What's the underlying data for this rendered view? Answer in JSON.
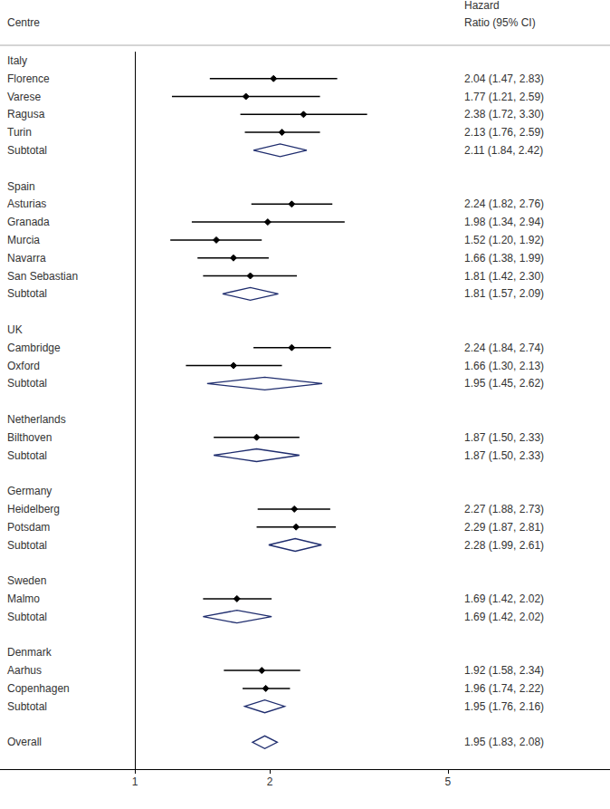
{
  "chart_data": {
    "type": "forest",
    "column_titles": {
      "left": [
        "Centre"
      ],
      "right": [
        "Hazard",
        "Ratio (95% CI)"
      ]
    },
    "categories": [
      "Italy",
      "Florence",
      "Varese",
      "Ragusa",
      "Turin",
      "Subtotal",
      null,
      "Spain",
      "Asturias",
      "Granada",
      "Murcia",
      "Navarra",
      "San Sebastian",
      "Subtotal",
      null,
      "UK",
      "Cambridge",
      "Oxford",
      "Subtotal",
      null,
      "Netherlands",
      "Bilthoven",
      "Subtotal",
      null,
      "Germany",
      "Heidelberg",
      "Potsdam",
      "Subtotal",
      null,
      "Sweden",
      "Malmo",
      "Subtotal",
      null,
      "Denmark",
      "Aarhus",
      "Copenhagen",
      "Subtotal",
      null,
      "Overall",
      null
    ],
    "values": [
      null,
      2.04,
      1.77,
      2.38,
      2.13,
      2.11,
      null,
      null,
      2.24,
      1.98,
      1.52,
      1.66,
      1.81,
      1.81,
      null,
      null,
      2.24,
      1.66,
      1.95,
      null,
      null,
      1.87,
      1.87,
      null,
      null,
      2.27,
      2.29,
      2.28,
      null,
      null,
      1.69,
      1.69,
      null,
      null,
      1.92,
      1.96,
      1.95,
      null,
      1.95,
      null
    ],
    "lower": [
      null,
      1.47,
      1.21,
      1.72,
      1.76,
      1.84,
      null,
      null,
      1.82,
      1.34,
      1.2,
      1.38,
      1.42,
      1.57,
      null,
      null,
      1.84,
      1.3,
      1.45,
      null,
      null,
      1.5,
      1.5,
      null,
      null,
      1.88,
      1.87,
      1.99,
      null,
      null,
      1.42,
      1.42,
      null,
      null,
      1.58,
      1.74,
      1.76,
      null,
      1.83,
      null
    ],
    "upper": [
      null,
      2.83,
      2.59,
      3.3,
      2.59,
      2.42,
      null,
      null,
      2.76,
      2.94,
      1.92,
      1.99,
      2.3,
      2.09,
      null,
      null,
      2.74,
      2.13,
      2.62,
      null,
      null,
      2.33,
      2.33,
      null,
      null,
      2.73,
      2.81,
      2.61,
      null,
      null,
      2.02,
      2.02,
      null,
      null,
      2.34,
      2.22,
      2.16,
      null,
      2.08,
      null
    ],
    "value_labels": [
      null,
      "2.04 (1.47, 2.83)",
      "1.77 (1.21, 2.59)",
      "2.38 (1.72, 3.30)",
      "2.13 (1.76, 2.59)",
      "2.11 (1.84, 2.42)",
      null,
      null,
      "2.24 (1.82, 2.76)",
      "1.98 (1.34, 2.94)",
      "1.52 (1.20, 1.92)",
      "1.66 (1.38, 1.99)",
      "1.81 (1.42, 2.30)",
      "1.81 (1.57, 2.09)",
      null,
      null,
      "2.24 (1.84, 2.74)",
      "1.66 (1.30, 2.13)",
      "1.95 (1.45, 2.62)",
      null,
      null,
      "1.87 (1.50, 2.33)",
      "1.87 (1.50, 2.33)",
      null,
      null,
      "2.27 (1.88, 2.73)",
      "2.29 (1.87, 2.81)",
      "2.28 (1.99, 2.61)",
      null,
      null,
      "1.69 (1.42, 2.02)",
      "1.69 (1.42, 2.02)",
      null,
      null,
      "1.92 (1.58, 2.34)",
      "1.96 (1.74, 2.22)",
      "1.95 (1.76, 2.16)",
      null,
      "1.95 (1.83, 2.08)",
      null
    ],
    "markers": [
      null,
      "point",
      "point",
      "point",
      "point",
      "diamond",
      null,
      null,
      "point",
      "point",
      "point",
      "point",
      "point",
      "diamond",
      null,
      null,
      "point",
      "point",
      "diamond",
      null,
      null,
      "point",
      "diamond",
      null,
      null,
      "point",
      "point",
      "diamond",
      null,
      null,
      "point",
      "diamond",
      null,
      null,
      "point",
      "point",
      "diamond",
      null,
      "diamond",
      null
    ],
    "colors": [
      null,
      "#000000",
      "#000000",
      "#000000",
      "#000000",
      "#1f2d6e",
      null,
      null,
      "#000000",
      "#000000",
      "#000000",
      "#000000",
      "#000000",
      "#1f2d6e",
      null,
      null,
      "#000000",
      "#000000",
      "#1f2d6e",
      null,
      null,
      "#000000",
      "#1f2d6e",
      null,
      null,
      "#000000",
      "#000000",
      "#1f2d6e",
      null,
      null,
      "#000000",
      "#1f2d6e",
      null,
      null,
      "#000000",
      "#000000",
      "#1f2d6e",
      null,
      "#1f2d6e",
      null
    ],
    "log": "x",
    "xlim": [
      0.5,
      11.5
    ],
    "xticks": [
      1,
      2,
      5
    ],
    "grid": false
  }
}
